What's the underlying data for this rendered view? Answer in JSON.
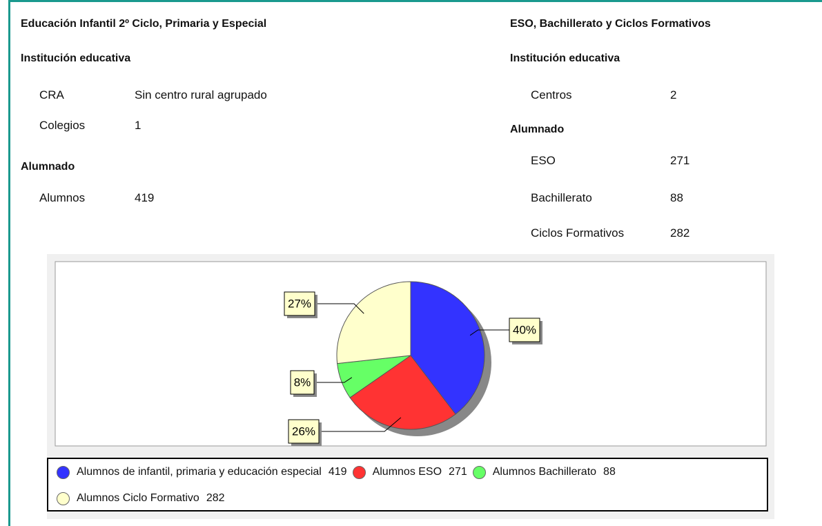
{
  "left": {
    "title": "Educación Infantil 2º Ciclo, Primaria y Especial",
    "sections": [
      {
        "heading": "Institución educativa",
        "rows": [
          [
            "CRA",
            "Sin centro rural agrupado"
          ],
          [
            "Colegios",
            1
          ]
        ]
      },
      {
        "heading": "Alumnado",
        "rows": [
          [
            "Alumnos",
            419
          ]
        ]
      }
    ]
  },
  "right": {
    "title": "ESO, Bachillerato y Ciclos Formativos",
    "sections": [
      {
        "heading": "Institución educativa",
        "rows": [
          [
            "Centros",
            2
          ]
        ]
      },
      {
        "heading": "Alumnado",
        "rows": [
          [
            "ESO",
            271
          ],
          [
            "Bachillerato",
            88
          ],
          [
            "Ciclos Formativos",
            282
          ]
        ]
      }
    ]
  },
  "chart_data": {
    "type": "pie",
    "categories": [
      "Alumnos de infantil, primaria y educación especial",
      "Alumnos ESO",
      "Alumnos Bachillerato",
      "Alumnos Ciclo Formativo"
    ],
    "values": [
      40,
      26,
      8,
      27
    ],
    "value_labels": [
      "40%",
      "26%",
      "8%",
      "27%"
    ],
    "legend_values": [
      419,
      271,
      88,
      282
    ],
    "colors": [
      "#3333ff",
      "#ff3333",
      "#66ff66",
      "#ffffcc"
    ]
  }
}
